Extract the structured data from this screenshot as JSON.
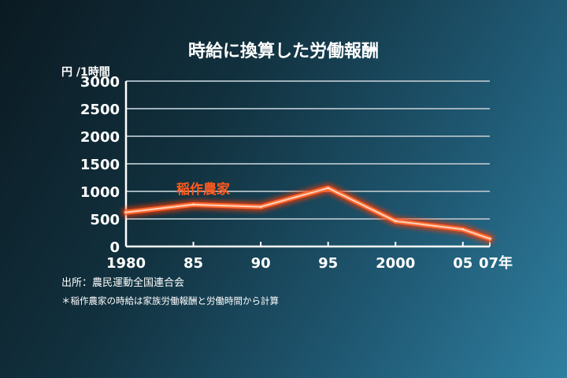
{
  "colors": {
    "line": "#ff6a30",
    "line_core": "#ffd3bd",
    "glow": "#ff3a00",
    "grid": "#9fb2bb",
    "label": "#ff5a1e"
  },
  "chart_data": {
    "type": "line",
    "title": "時給に換算した労働報酬",
    "ylabel": "円 /1時間",
    "xlabel": "",
    "ylim": [
      0,
      3000
    ],
    "yticks": [
      0,
      500,
      1000,
      1500,
      2000,
      2500,
      3000
    ],
    "ytick_labels": [
      "0",
      "500",
      "1000",
      "1500",
      "2000",
      "2500",
      "3000"
    ],
    "xlim": [
      1980,
      2007
    ],
    "xticks": [
      1980,
      1985,
      1990,
      1995,
      2000,
      2005,
      2007
    ],
    "xtick_labels": [
      "1980",
      "85",
      "90",
      "95",
      "2000",
      "05",
      "07年"
    ],
    "grid": true,
    "series": [
      {
        "name": "稲作農家",
        "x": [
          1980,
          1985,
          1990,
          1995,
          2000,
          2005,
          2007
        ],
        "values": [
          620,
          760,
          720,
          1060,
          460,
          310,
          140
        ]
      }
    ],
    "source": "出所：農民運動全国連合会",
    "note": "＊稲作農家の時給は家族労働報酬と労働時間から計算"
  }
}
